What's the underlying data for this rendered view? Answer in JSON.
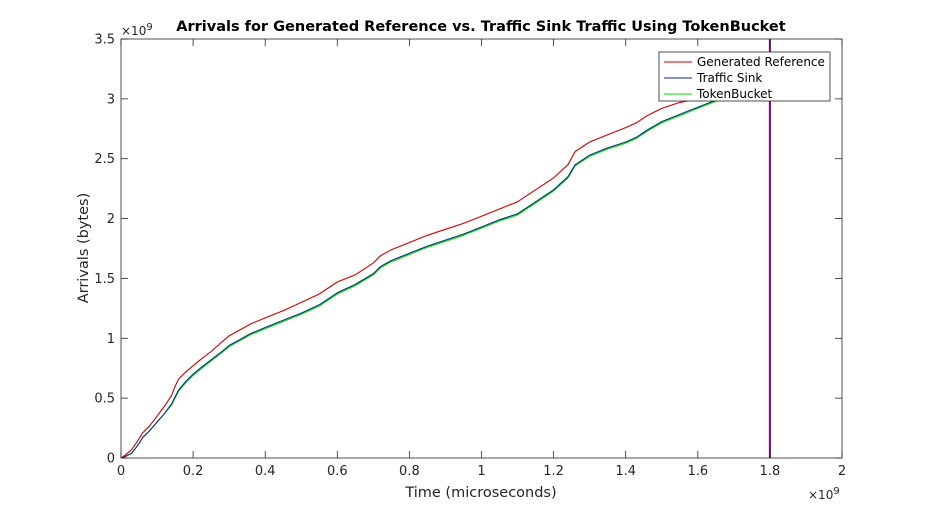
{
  "chart_data": {
    "type": "line",
    "title": "Arrivals for Generated Reference vs. Traffic Sink Traffic Using TokenBucket",
    "xlabel": "Time (microseconds)",
    "ylabel": "Arrivals (bytes)",
    "x_exponent_label": "×10",
    "x_exponent_power": "9",
    "y_exponent_label": "×10",
    "y_exponent_power": "9",
    "xlim": [
      0,
      2
    ],
    "ylim": [
      0,
      3.5
    ],
    "x_ticks": [
      0,
      0.2,
      0.4,
      0.6,
      0.8,
      1,
      1.2,
      1.4,
      1.6,
      1.8,
      2
    ],
    "x_tick_labels": [
      "0",
      "0.2",
      "0.4",
      "0.6",
      "0.8",
      "1",
      "1.2",
      "1.4",
      "1.6",
      "1.8",
      "2"
    ],
    "y_ticks": [
      0,
      0.5,
      1,
      1.5,
      2,
      2.5,
      3,
      3.5
    ],
    "y_tick_labels": [
      "0",
      "0.5",
      "1",
      "1.5",
      "2",
      "2.5",
      "3",
      "3.5"
    ],
    "grid": false,
    "legend_position": "top-right",
    "series": [
      {
        "name": "Generated Reference",
        "color": "#cc0000",
        "x": [
          0,
          0.01,
          0.03,
          0.05,
          0.06,
          0.08,
          0.1,
          0.12,
          0.14,
          0.15,
          0.16,
          0.18,
          0.2,
          0.22,
          0.25,
          0.28,
          0.3,
          0.33,
          0.36,
          0.4,
          0.45,
          0.5,
          0.55,
          0.6,
          0.65,
          0.7,
          0.72,
          0.75,
          0.8,
          0.85,
          0.9,
          0.95,
          1.0,
          1.05,
          1.1,
          1.15,
          1.2,
          1.24,
          1.26,
          1.3,
          1.35,
          1.4,
          1.43,
          1.46,
          1.5,
          1.55,
          1.6,
          1.62
        ],
        "values": [
          0,
          0.02,
          0.07,
          0.16,
          0.21,
          0.27,
          0.35,
          0.43,
          0.52,
          0.6,
          0.66,
          0.72,
          0.77,
          0.82,
          0.89,
          0.97,
          1.02,
          1.07,
          1.12,
          1.17,
          1.23,
          1.3,
          1.37,
          1.47,
          1.53,
          1.63,
          1.69,
          1.74,
          1.8,
          1.86,
          1.91,
          1.96,
          2.02,
          2.08,
          2.14,
          2.24,
          2.34,
          2.45,
          2.56,
          2.64,
          2.7,
          2.76,
          2.8,
          2.86,
          2.92,
          2.97,
          3.0,
          3.01
        ]
      },
      {
        "name": "Traffic Sink",
        "color": "#0b2e8a",
        "x": [
          0,
          0.01,
          0.03,
          0.05,
          0.06,
          0.08,
          0.1,
          0.12,
          0.14,
          0.15,
          0.16,
          0.18,
          0.2,
          0.22,
          0.25,
          0.28,
          0.3,
          0.33,
          0.36,
          0.4,
          0.45,
          0.5,
          0.55,
          0.6,
          0.65,
          0.7,
          0.72,
          0.75,
          0.8,
          0.85,
          0.9,
          0.95,
          1.0,
          1.05,
          1.1,
          1.15,
          1.2,
          1.24,
          1.26,
          1.3,
          1.35,
          1.4,
          1.43,
          1.46,
          1.5,
          1.55,
          1.6,
          1.65,
          1.7
        ],
        "values": [
          0,
          0.01,
          0.04,
          0.12,
          0.17,
          0.23,
          0.3,
          0.37,
          0.45,
          0.51,
          0.57,
          0.64,
          0.7,
          0.75,
          0.82,
          0.89,
          0.94,
          0.99,
          1.04,
          1.09,
          1.15,
          1.21,
          1.28,
          1.38,
          1.45,
          1.54,
          1.6,
          1.65,
          1.71,
          1.77,
          1.82,
          1.87,
          1.93,
          1.99,
          2.04,
          2.14,
          2.24,
          2.35,
          2.45,
          2.53,
          2.59,
          2.64,
          2.68,
          2.74,
          2.81,
          2.87,
          2.93,
          2.99,
          3.02
        ]
      },
      {
        "name": "TokenBucket",
        "color": "#00e000",
        "x": [
          0,
          0.01,
          0.03,
          0.05,
          0.06,
          0.08,
          0.1,
          0.12,
          0.14,
          0.15,
          0.16,
          0.18,
          0.2,
          0.22,
          0.25,
          0.28,
          0.3,
          0.33,
          0.36,
          0.4,
          0.45,
          0.5,
          0.55,
          0.6,
          0.65,
          0.7,
          0.72,
          0.75,
          0.8,
          0.85,
          0.9,
          0.95,
          1.0,
          1.05,
          1.1,
          1.15,
          1.2,
          1.24,
          1.26,
          1.3,
          1.35,
          1.4,
          1.43,
          1.46,
          1.5,
          1.55,
          1.6,
          1.65,
          1.7
        ],
        "values": [
          0,
          0.01,
          0.04,
          0.12,
          0.17,
          0.23,
          0.3,
          0.37,
          0.44,
          0.5,
          0.56,
          0.63,
          0.69,
          0.74,
          0.81,
          0.88,
          0.93,
          0.98,
          1.03,
          1.08,
          1.14,
          1.2,
          1.27,
          1.37,
          1.44,
          1.53,
          1.59,
          1.64,
          1.7,
          1.76,
          1.81,
          1.86,
          1.92,
          1.98,
          2.03,
          2.13,
          2.23,
          2.34,
          2.44,
          2.52,
          2.58,
          2.63,
          2.67,
          2.73,
          2.8,
          2.86,
          2.92,
          2.98,
          3.01
        ]
      },
      {
        "name": "",
        "color": "#800080",
        "x": [
          1.8,
          1.8
        ],
        "values": [
          0,
          3.5
        ]
      }
    ]
  }
}
